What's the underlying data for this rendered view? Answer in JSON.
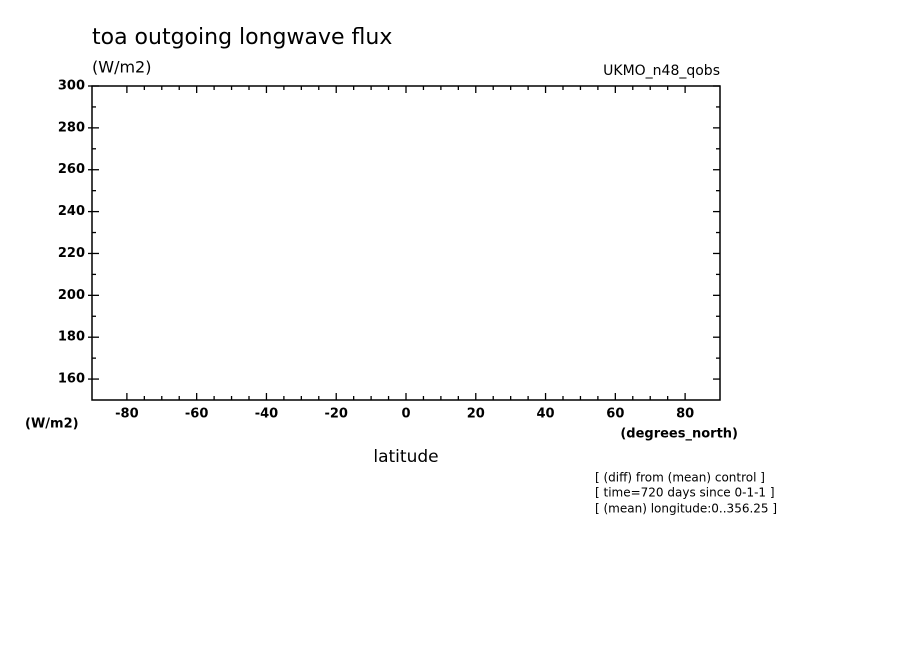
{
  "chart_data": {
    "type": "line",
    "title": "toa outgoing longwave flux",
    "y_units": "(W/m2)",
    "subtitle_right": "UKMO_n48_qobs",
    "y_label": "(W/m2)",
    "x_units": "(degrees_north)",
    "x_label": "latitude",
    "annotations": [
      "[ (diff) from (mean) control ]",
      "[ time=720 days since 0-1-1 ]",
      "[ (mean) longitude:0..356.25 ]"
    ],
    "xlim": [
      -90,
      90
    ],
    "xticks": [
      -80,
      -60,
      -40,
      -20,
      0,
      20,
      40,
      60,
      80
    ],
    "ylim": [
      150,
      300
    ],
    "yticks": [
      160,
      180,
      200,
      220,
      240,
      260,
      280,
      300
    ],
    "series": []
  }
}
